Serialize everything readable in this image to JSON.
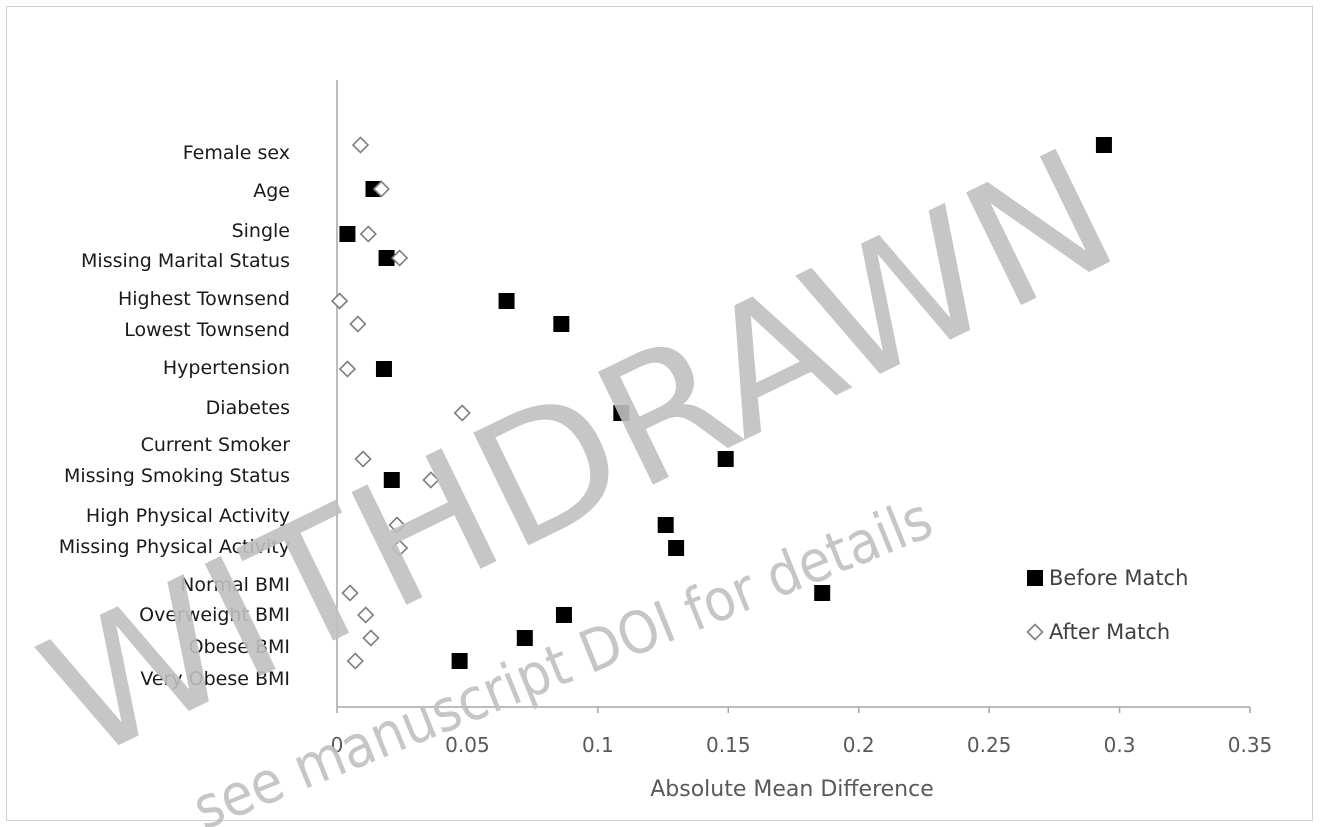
{
  "chart_data": {
    "type": "scatter",
    "xlabel": "Absolute Mean Difference",
    "xlim": [
      0,
      0.35
    ],
    "x_ticks": [
      "0",
      "0.05",
      "0.1",
      "0.15",
      "0.2",
      "0.25",
      "0.3",
      "0.35"
    ],
    "x_tick_values": [
      0,
      0.05,
      0.1,
      0.15,
      0.2,
      0.25,
      0.3,
      0.35
    ],
    "grid": false,
    "legend_position": "right",
    "categories": [
      "Female sex",
      "Age",
      "Single",
      "Missing Marital Status",
      "Highest Townsend",
      "Lowest Townsend",
      "Hypertension",
      "Diabetes",
      "Current Smoker",
      "Missing Smoking Status",
      "High Physical Activity",
      "Missing Physical Activity",
      "Normal BMI",
      "Overweight BMI",
      "Obese BMI",
      "Very Obese BMI"
    ],
    "series": [
      {
        "name": "Before Match",
        "marker": "filled-square",
        "color": "#000000",
        "values": [
          0.294,
          0.014,
          0.004,
          0.019,
          0.065,
          0.086,
          0.018,
          0.109,
          0.149,
          0.021,
          0.126,
          0.13,
          0.186,
          0.087,
          0.072,
          0.047
        ]
      },
      {
        "name": "After Match",
        "marker": "hollow-diamond",
        "color": "#7f7f7f",
        "values": [
          0.009,
          0.017,
          0.012,
          0.024,
          0.001,
          0.008,
          0.004,
          0.048,
          0.01,
          0.036,
          0.023,
          0.024,
          0.005,
          0.011,
          0.013,
          0.007
        ]
      }
    ]
  },
  "watermark": {
    "main_text": "WITHDRAWN",
    "sub_text": "see manuscript DOI for details",
    "color": "#c0c0c0"
  }
}
